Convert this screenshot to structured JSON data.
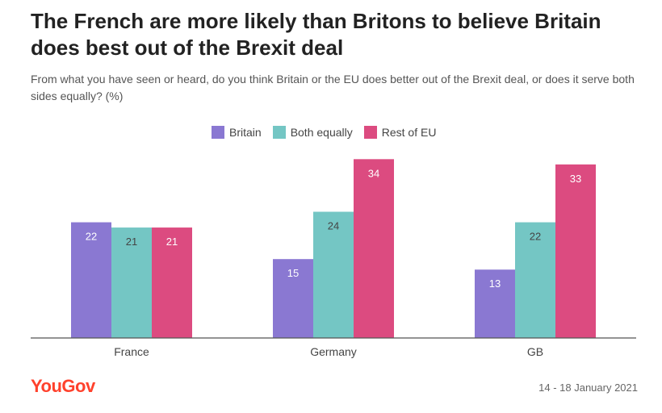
{
  "title": "The French are more likely than Britons to believe Britain does best out of the Brexit deal",
  "subtitle": "From what you have seen or heard, do you think Britain or the EU does better out of the Brexit deal, or does it serve both sides equally? (%)",
  "logo_text": "YouGov",
  "date": "14 - 18 January 2021",
  "chart_data": {
    "type": "bar",
    "categories": [
      "France",
      "Germany",
      "GB"
    ],
    "series": [
      {
        "name": "Britain",
        "color": "#8a78d2",
        "values": [
          22,
          15,
          13
        ]
      },
      {
        "name": "Both equally",
        "color": "#74c6c4",
        "values": [
          21,
          24,
          22
        ]
      },
      {
        "name": "Rest of EU",
        "color": "#dc4b80",
        "values": [
          21,
          34,
          33
        ]
      }
    ],
    "ylim": [
      0,
      34
    ],
    "legend": "top-center",
    "grid": false
  }
}
